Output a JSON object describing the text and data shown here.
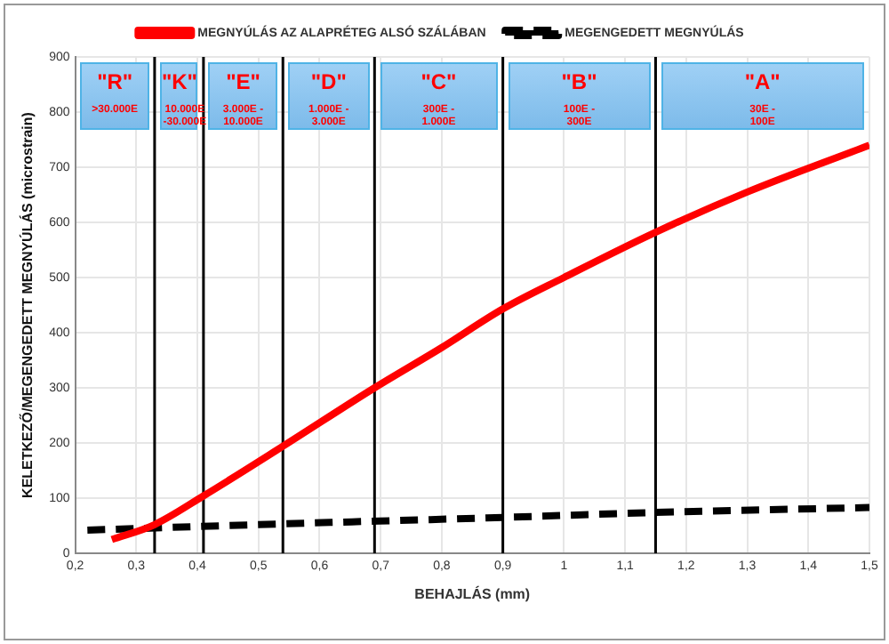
{
  "chart_data": {
    "type": "line",
    "xlabel": "BEHAJLÁS (mm)",
    "ylabel": "KELETKEZŐ/MEGENGEDETT MEGNYÚLÁS (microstrain)",
    "series": [
      {
        "name": "MEGNYÚLÁS AZ ALAPRÉTEG ALSÓ SZÁLÁBAN",
        "color": "#ff0000",
        "line_style": "solid",
        "x": [
          0.26,
          0.33,
          0.41,
          0.54,
          0.69,
          0.8,
          0.9,
          1.0,
          1.15,
          1.3,
          1.5
        ],
        "values": [
          25,
          52,
          104,
          194,
          300,
          373,
          443,
          500,
          582,
          655,
          740
        ]
      },
      {
        "name": "MEGENGEDETT MEGNYÚLÁS",
        "color": "#000000",
        "line_style": "dashed",
        "x": [
          0.22,
          0.5,
          0.9,
          1.15,
          1.5
        ],
        "values": [
          42,
          52,
          65,
          74,
          83
        ]
      }
    ],
    "xlim": [
      0.2,
      1.5
    ],
    "xticks": [
      {
        "value": 0.2,
        "label": "0,2"
      },
      {
        "value": 0.3,
        "label": "0,3"
      },
      {
        "value": 0.4,
        "label": "0,4"
      },
      {
        "value": 0.5,
        "label": "0,5"
      },
      {
        "value": 0.6,
        "label": "0,6"
      },
      {
        "value": 0.7,
        "label": "0,7"
      },
      {
        "value": 0.8,
        "label": "0,8"
      },
      {
        "value": 0.9,
        "label": "0,9"
      },
      1,
      {
        "value": 1.1,
        "label": "1,1"
      },
      {
        "value": 1.2,
        "label": "1,2"
      },
      {
        "value": 1.3,
        "label": "1,3"
      },
      {
        "value": 1.4,
        "label": "1,4"
      },
      {
        "value": 1.5,
        "label": "1,5"
      }
    ],
    "ylim": [
      0,
      900
    ],
    "yticks": [
      0,
      100,
      200,
      300,
      400,
      500,
      600,
      700,
      800,
      900
    ],
    "ref_lines": [
      {
        "axis": "x",
        "value": 0.33,
        "color": "#000000"
      },
      {
        "axis": "x",
        "value": 0.41,
        "color": "#000000"
      },
      {
        "axis": "x",
        "value": 0.54,
        "color": "#000000"
      },
      {
        "axis": "x",
        "value": 0.69,
        "color": "#000000"
      },
      {
        "axis": "x",
        "value": 0.9,
        "color": "#000000"
      },
      {
        "axis": "x",
        "value": 1.15,
        "color": "#000000"
      }
    ],
    "annotations": [
      "\"R\"\n>30.000E",
      "\"K\"\n10.000E -30.000E",
      "\"E\"\n3.000E - 10.000E",
      "\"D\"\n1.000E - 3.000E",
      "\"C\"\n300E - 1.000E",
      "\"B\"\n100E - 300E",
      "\"A\"\n30E - 100E"
    ],
    "grid": true,
    "legend": "top",
    "marker": "none"
  }
}
